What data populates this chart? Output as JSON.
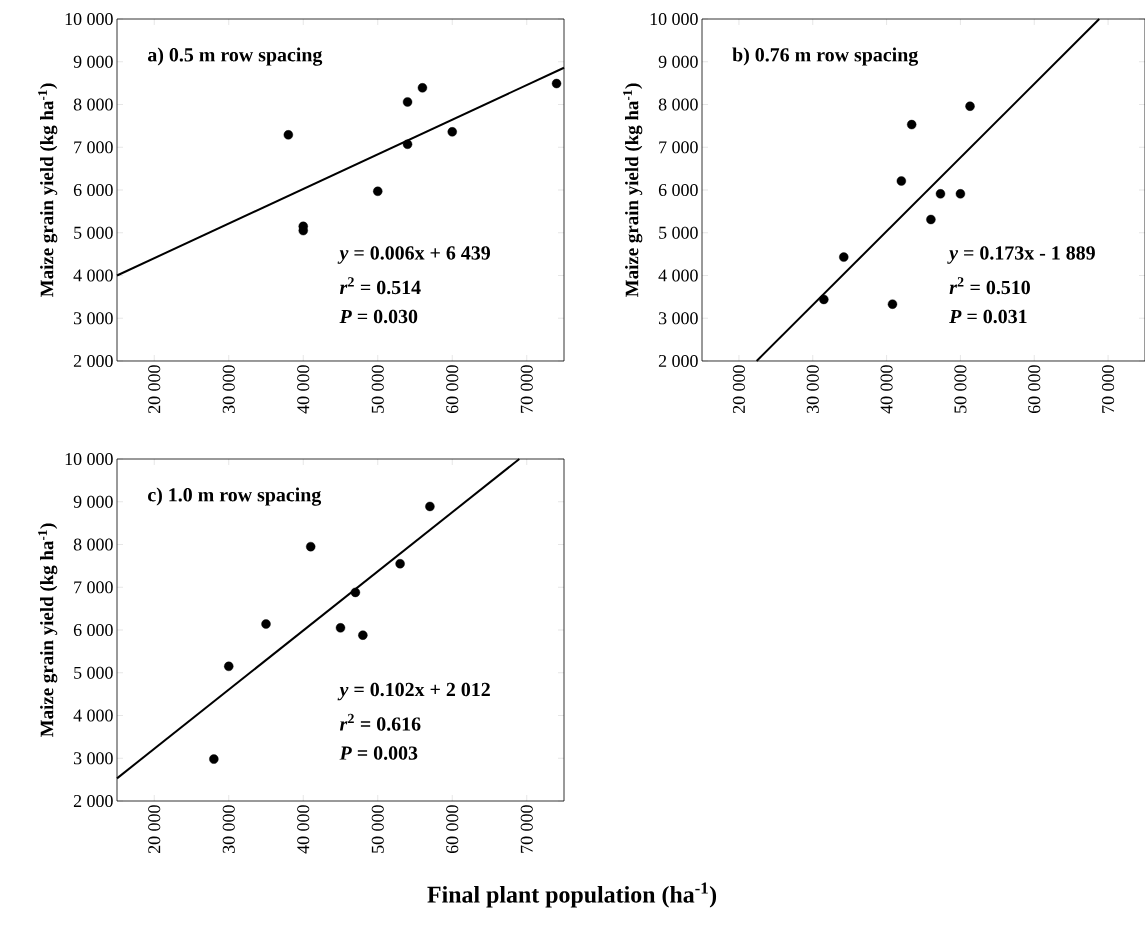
{
  "chart_data": [
    {
      "type": "scatter",
      "title": "a) 0.5 m row spacing",
      "ylabel": "Maize grain yield (kg ha$^{-1}$)",
      "xlim": [
        15000,
        75000
      ],
      "ylim": [
        2000,
        10000
      ],
      "xticks": [
        {
          "value": 20000,
          "label": "20 000"
        },
        {
          "value": 30000,
          "label": "30 000"
        },
        {
          "value": 40000,
          "label": "40 000"
        },
        {
          "value": 50000,
          "label": "50 000"
        },
        {
          "value": 60000,
          "label": "60 000"
        },
        {
          "value": 70000,
          "label": "70 000"
        }
      ],
      "yticks": [
        {
          "value": 2000,
          "label": "2 000"
        },
        {
          "value": 3000,
          "label": "3 000"
        },
        {
          "value": 4000,
          "label": "4 000"
        },
        {
          "value": 5000,
          "label": "5 000"
        },
        {
          "value": 6000,
          "label": "6 000"
        },
        {
          "value": 7000,
          "label": "7 000"
        },
        {
          "value": 8000,
          "label": "8 000"
        },
        {
          "value": 9000,
          "label": "9 000"
        },
        {
          "value": 10000,
          "label": "10 000"
        }
      ],
      "annotations": [
        "*y* = 0.006x + 6 439",
        "*r*$^{2}$ = 0.514",
        "*P* = 0.030"
      ],
      "series": [
        {
          "marker": "circle",
          "color": "#000000",
          "x": [
            38000,
            40000,
            40000,
            50000,
            54000,
            54000,
            56000,
            60000,
            74000
          ],
          "values": [
            7290,
            5150,
            5050,
            5970,
            8060,
            7070,
            8390,
            7360,
            8490
          ]
        },
        {
          "type": "line",
          "marker": "none",
          "color": "#000000",
          "x": [
            15000,
            75000
          ],
          "values": [
            4000,
            8860
          ]
        }
      ]
    },
    {
      "type": "scatter",
      "title": "b) 0.76 m row spacing",
      "ylabel": "Maize grain yield (kg ha$^{-1}$)",
      "xlim": [
        15000,
        75000
      ],
      "ylim": [
        2000,
        10000
      ],
      "xticks": [
        {
          "value": 20000,
          "label": "20 000"
        },
        {
          "value": 30000,
          "label": "30 000"
        },
        {
          "value": 40000,
          "label": "40 000"
        },
        {
          "value": 50000,
          "label": "50 000"
        },
        {
          "value": 60000,
          "label": "60 000"
        },
        {
          "value": 70000,
          "label": "70 000"
        }
      ],
      "yticks": [
        {
          "value": 2000,
          "label": "2 000"
        },
        {
          "value": 3000,
          "label": "3 000"
        },
        {
          "value": 4000,
          "label": "4 000"
        },
        {
          "value": 5000,
          "label": "5 000"
        },
        {
          "value": 6000,
          "label": "6 000"
        },
        {
          "value": 7000,
          "label": "7 000"
        },
        {
          "value": 8000,
          "label": "8 000"
        },
        {
          "value": 9000,
          "label": "9 000"
        },
        {
          "value": 10000,
          "label": "10 000"
        }
      ],
      "annotations": [
        "*y* = 0.173x - 1 889",
        "*r*$^{2}$ = 0.510",
        "*P* = 0.031"
      ],
      "series": [
        {
          "marker": "circle",
          "color": "#000000",
          "x": [
            31500,
            34200,
            40800,
            42000,
            43400,
            46000,
            47300,
            50000,
            51300
          ],
          "values": [
            3440,
            4430,
            3330,
            6210,
            7530,
            5310,
            5910,
            5910,
            7960
          ]
        },
        {
          "type": "line",
          "marker": "none",
          "color": "#000000",
          "x": [
            22400,
            68800
          ],
          "values": [
            2000,
            10000
          ]
        }
      ]
    },
    {
      "type": "scatter",
      "title": "c) 1.0 m row spacing",
      "ylabel": "Maize grain yield (kg ha$^{-1}$)",
      "xlabel": "Final plant population (ha$^{-1}$)",
      "xlim": [
        15000,
        75000
      ],
      "ylim": [
        2000,
        10000
      ],
      "xticks": [
        {
          "value": 20000,
          "label": "20 000"
        },
        {
          "value": 30000,
          "label": "30 000"
        },
        {
          "value": 40000,
          "label": "40 000"
        },
        {
          "value": 50000,
          "label": "50 000"
        },
        {
          "value": 60000,
          "label": "60 000"
        },
        {
          "value": 70000,
          "label": "70 000"
        }
      ],
      "yticks": [
        {
          "value": 2000,
          "label": "2 000"
        },
        {
          "value": 3000,
          "label": "3 000"
        },
        {
          "value": 4000,
          "label": "4 000"
        },
        {
          "value": 5000,
          "label": "5 000"
        },
        {
          "value": 6000,
          "label": "6 000"
        },
        {
          "value": 7000,
          "label": "7 000"
        },
        {
          "value": 8000,
          "label": "8 000"
        },
        {
          "value": 9000,
          "label": "9 000"
        },
        {
          "value": 10000,
          "label": "10 000"
        }
      ],
      "annotations": [
        "*y* = 0.102x + 2 012",
        "*r*$^{2}$ = 0.616",
        "*P* = 0.003"
      ],
      "series": [
        {
          "marker": "circle",
          "color": "#000000",
          "x": [
            28000,
            30000,
            35000,
            41000,
            45000,
            47000,
            48000,
            53000,
            57000
          ],
          "values": [
            2980,
            5150,
            6140,
            7950,
            6050,
            6880,
            5880,
            7550,
            8890
          ]
        },
        {
          "type": "line",
          "marker": "none",
          "color": "#000000",
          "x": [
            15000,
            69000
          ],
          "values": [
            2530,
            10000
          ]
        }
      ]
    }
  ]
}
